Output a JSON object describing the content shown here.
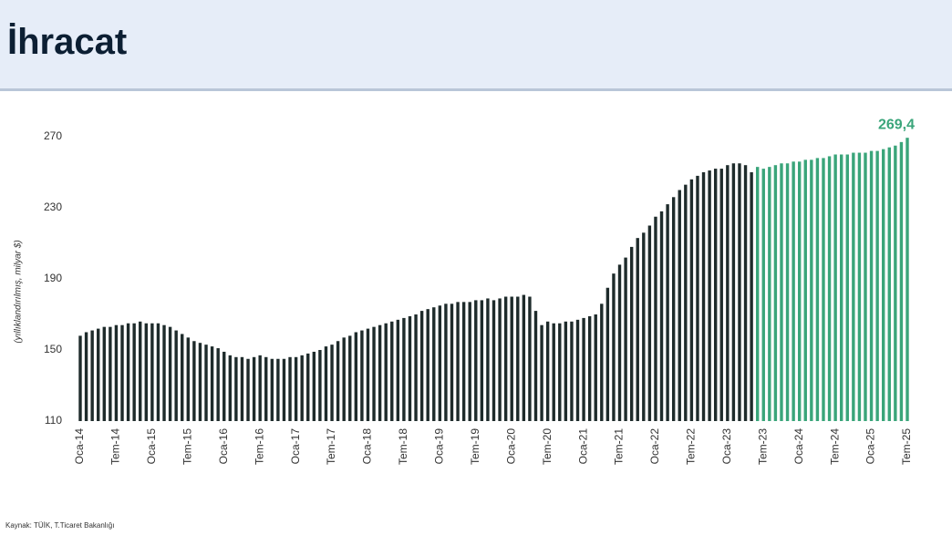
{
  "chart_data": {
    "type": "bar",
    "title": "İhracat",
    "y_label": "(yıllıklandırılmış, milyar $)",
    "source": "Kaynak: TÜİK, T.Ticaret Bakanlığı",
    "categories": [
      "Oca-14",
      null,
      null,
      null,
      null,
      null,
      "Tem-14",
      null,
      null,
      null,
      null,
      null,
      "Oca-15",
      null,
      null,
      null,
      null,
      null,
      "Tem-15",
      null,
      null,
      null,
      null,
      null,
      "Oca-16",
      null,
      null,
      null,
      null,
      null,
      "Tem-16",
      null,
      null,
      null,
      null,
      null,
      "Oca-17",
      null,
      null,
      null,
      null,
      null,
      "Tem-17",
      null,
      null,
      null,
      null,
      null,
      "Oca-18",
      null,
      null,
      null,
      null,
      null,
      "Tem-18",
      null,
      null,
      null,
      null,
      null,
      "Oca-19",
      null,
      null,
      null,
      null,
      null,
      "Tem-19",
      null,
      null,
      null,
      null,
      null,
      "Oca-20",
      null,
      null,
      null,
      null,
      null,
      "Tem-20",
      null,
      null,
      null,
      null,
      null,
      "Oca-21",
      null,
      null,
      null,
      null,
      null,
      "Tem-21",
      null,
      null,
      null,
      null,
      null,
      "Oca-22",
      null,
      null,
      null,
      null,
      null,
      "Tem-22",
      null,
      null,
      null,
      null,
      null,
      "Oca-23",
      null,
      null,
      null,
      null,
      null,
      "Tem-23",
      null,
      null,
      null,
      null,
      null,
      "Oca-24",
      null,
      null,
      null,
      null,
      null,
      "Tem-24",
      null,
      null,
      null,
      null,
      null,
      "Oca-25",
      null,
      null,
      null,
      null,
      null,
      "Tem-25"
    ],
    "values": [
      158,
      160,
      161,
      162,
      163,
      163,
      164,
      164,
      165,
      165,
      166,
      165,
      165,
      165,
      164,
      163,
      161,
      159,
      157,
      155,
      154,
      153,
      152,
      151,
      149,
      147,
      146,
      146,
      145,
      146,
      147,
      146,
      145,
      145,
      145,
      146,
      146,
      147,
      148,
      149,
      150,
      152,
      153,
      155,
      157,
      158,
      160,
      161,
      162,
      163,
      164,
      165,
      166,
      167,
      168,
      169,
      170,
      172,
      173,
      174,
      175,
      176,
      176,
      177,
      177,
      177,
      178,
      178,
      179,
      178,
      179,
      180,
      180,
      180,
      181,
      180,
      172,
      164,
      166,
      165,
      165,
      166,
      166,
      167,
      168,
      169,
      170,
      176,
      185,
      193,
      198,
      202,
      208,
      213,
      216,
      220,
      225,
      228,
      232,
      236,
      240,
      243,
      246,
      248,
      250,
      251,
      252,
      252,
      254,
      255,
      255,
      254,
      250,
      253,
      252,
      253,
      254,
      255,
      255,
      256,
      256,
      257,
      257,
      258,
      258,
      259,
      260,
      260,
      260,
      261,
      261,
      261,
      262,
      262,
      263,
      264,
      265,
      267,
      269.4
    ],
    "value_labels": [
      null,
      null,
      null,
      null,
      null,
      null,
      null,
      null,
      null,
      null,
      null,
      null,
      null,
      null,
      null,
      null,
      null,
      null,
      null,
      null,
      null,
      null,
      null,
      null,
      null,
      null,
      null,
      null,
      null,
      null,
      null,
      null,
      null,
      null,
      null,
      null,
      null,
      null,
      null,
      null,
      null,
      null,
      null,
      null,
      null,
      null,
      null,
      null,
      null,
      null,
      null,
      null,
      null,
      null,
      null,
      null,
      null,
      null,
      null,
      null,
      null,
      null,
      null,
      null,
      null,
      null,
      null,
      null,
      null,
      null,
      null,
      null,
      null,
      null,
      null,
      null,
      null,
      null,
      null,
      null,
      null,
      null,
      null,
      null,
      null,
      null,
      null,
      null,
      null,
      null,
      null,
      null,
      null,
      null,
      null,
      null,
      null,
      null,
      null,
      null,
      null,
      null,
      null,
      null,
      null,
      null,
      null,
      null,
      null,
      null,
      null,
      null,
      null,
      null,
      null,
      null,
      null,
      null,
      null,
      null,
      null,
      null,
      null,
      null,
      null,
      null,
      null,
      null,
      null,
      null,
      null,
      null,
      null,
      null,
      null,
      null,
      null,
      null,
      "269,4"
    ],
    "colors": [
      "#1e2b2b",
      "#1e2b2b",
      "#1e2b2b",
      "#1e2b2b",
      "#1e2b2b",
      "#1e2b2b",
      "#1e2b2b",
      "#1e2b2b",
      "#1e2b2b",
      "#1e2b2b",
      "#1e2b2b",
      "#1e2b2b",
      "#1e2b2b",
      "#1e2b2b",
      "#1e2b2b",
      "#1e2b2b",
      "#1e2b2b",
      "#1e2b2b",
      "#1e2b2b",
      "#1e2b2b",
      "#1e2b2b",
      "#1e2b2b",
      "#1e2b2b",
      "#1e2b2b",
      "#1e2b2b",
      "#1e2b2b",
      "#1e2b2b",
      "#1e2b2b",
      "#1e2b2b",
      "#1e2b2b",
      "#1e2b2b",
      "#1e2b2b",
      "#1e2b2b",
      "#1e2b2b",
      "#1e2b2b",
      "#1e2b2b",
      "#1e2b2b",
      "#1e2b2b",
      "#1e2b2b",
      "#1e2b2b",
      "#1e2b2b",
      "#1e2b2b",
      "#1e2b2b",
      "#1e2b2b",
      "#1e2b2b",
      "#1e2b2b",
      "#1e2b2b",
      "#1e2b2b",
      "#1e2b2b",
      "#1e2b2b",
      "#1e2b2b",
      "#1e2b2b",
      "#1e2b2b",
      "#1e2b2b",
      "#1e2b2b",
      "#1e2b2b",
      "#1e2b2b",
      "#1e2b2b",
      "#1e2b2b",
      "#1e2b2b",
      "#1e2b2b",
      "#1e2b2b",
      "#1e2b2b",
      "#1e2b2b",
      "#1e2b2b",
      "#1e2b2b",
      "#1e2b2b",
      "#1e2b2b",
      "#1e2b2b",
      "#1e2b2b",
      "#1e2b2b",
      "#1e2b2b",
      "#1e2b2b",
      "#1e2b2b",
      "#1e2b2b",
      "#1e2b2b",
      "#1e2b2b",
      "#1e2b2b",
      "#1e2b2b",
      "#1e2b2b",
      "#1e2b2b",
      "#1e2b2b",
      "#1e2b2b",
      "#1e2b2b",
      "#1e2b2b",
      "#1e2b2b",
      "#1e2b2b",
      "#1e2b2b",
      "#1e2b2b",
      "#1e2b2b",
      "#1e2b2b",
      "#1e2b2b",
      "#1e2b2b",
      "#1e2b2b",
      "#1e2b2b",
      "#1e2b2b",
      "#1e2b2b",
      "#1e2b2b",
      "#1e2b2b",
      "#1e2b2b",
      "#1e2b2b",
      "#1e2b2b",
      "#1e2b2b",
      "#1e2b2b",
      "#1e2b2b",
      "#1e2b2b",
      "#1e2b2b",
      "#1e2b2b",
      "#1e2b2b",
      "#1e2b2b",
      "#1e2b2b",
      "#1e2b2b",
      "#1e2b2b",
      "#3aa57a",
      "#3aa57a",
      "#3aa57a",
      "#3aa57a",
      "#3aa57a",
      "#3aa57a",
      "#3aa57a",
      "#3aa57a",
      "#3aa57a",
      "#3aa57a",
      "#3aa57a",
      "#3aa57a",
      "#3aa57a",
      "#3aa57a",
      "#3aa57a",
      "#3aa57a",
      "#3aa57a",
      "#3aa57a",
      "#3aa57a",
      "#3aa57a",
      "#3aa57a",
      "#3aa57a",
      "#3aa57a",
      "#3aa57a",
      "#3aa57a",
      "#3aa57a"
    ],
    "ylim": [
      110,
      270
    ],
    "yticks": [
      110,
      150,
      190,
      230,
      270
    ],
    "grid": false
  }
}
